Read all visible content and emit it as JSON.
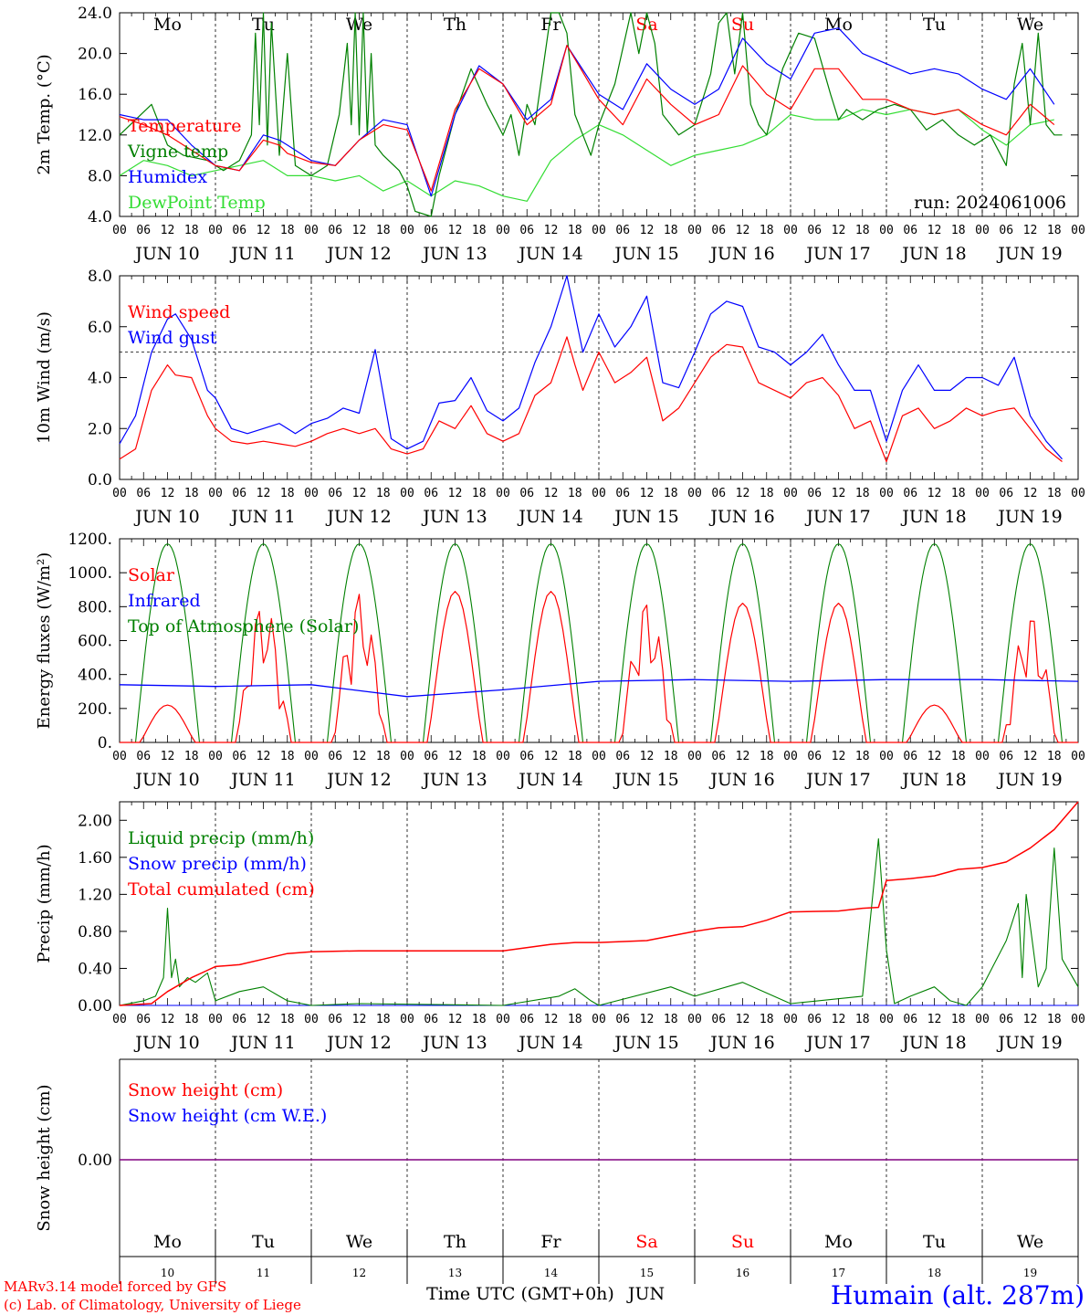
{
  "colors": {
    "red": "#ff0000",
    "green": "#008000",
    "blue": "#0000ff",
    "lime": "#33dd33",
    "black": "#000000",
    "purple": "#800080"
  },
  "hour_labels": [
    "00",
    "06",
    "12",
    "18"
  ],
  "final_hour_label": "00",
  "date_labels": [
    "JUN 10",
    "JUN 11",
    "JUN 12",
    "JUN 13",
    "JUN 14",
    "JUN 15",
    "JUN 16",
    "JUN 17",
    "JUN 18",
    "JUN 19"
  ],
  "weekdays": [
    {
      "label": "Mo",
      "color": "#000000"
    },
    {
      "label": "Tu",
      "color": "#000000"
    },
    {
      "label": "We",
      "color": "#000000"
    },
    {
      "label": "Th",
      "color": "#000000"
    },
    {
      "label": "Fr",
      "color": "#000000"
    },
    {
      "label": "Sa",
      "color": "#ff0000"
    },
    {
      "label": "Su",
      "color": "#ff0000"
    },
    {
      "label": "Mo",
      "color": "#000000"
    },
    {
      "label": "Tu",
      "color": "#000000"
    },
    {
      "label": "We",
      "color": "#000000"
    }
  ],
  "bottom_day_numbers": [
    "10",
    "11",
    "12",
    "13",
    "14",
    "15",
    "16",
    "17",
    "18",
    "19"
  ],
  "x_axis_title": "Time UTC (GMT+0h)",
  "x_axis_month": "JUN",
  "credits": [
    "MARv3.14 model forced by GFS",
    "(c) Lab. of Climatology, University of Liege"
  ],
  "station": "Humain (alt. 287m)",
  "chart_data": [
    {
      "type": "line",
      "id": "temperature",
      "ylabel": "2m Temp. (°C)",
      "ylim": [
        4,
        24
      ],
      "yticks": [
        "4.0",
        "8.0",
        "12.0",
        "16.0",
        "20.0",
        "24.0"
      ],
      "annotation": "run: 2024061006",
      "x_unit": "hours since JUN 10 00 UTC",
      "series": [
        {
          "name": "Temperature",
          "color": "#ff0000",
          "x": [
            0,
            6,
            12,
            18,
            24,
            30,
            36,
            40,
            42,
            48,
            54,
            60,
            66,
            72,
            78,
            84,
            90,
            96,
            102,
            108,
            112,
            120,
            126,
            132,
            138,
            144,
            150,
            156,
            162,
            168,
            174,
            180,
            186,
            192,
            198,
            204,
            210,
            216,
            222,
            228,
            234
          ],
          "y": [
            13.8,
            13.0,
            12.0,
            10.5,
            9.0,
            8.5,
            11.5,
            11.0,
            10.2,
            9.3,
            9.0,
            11.5,
            13.0,
            12.5,
            6.5,
            14.5,
            18.5,
            17.0,
            13.0,
            15.0,
            20.8,
            15.5,
            13.0,
            17.5,
            15.0,
            13.0,
            14.0,
            18.8,
            16.0,
            14.5,
            18.5,
            18.5,
            15.5,
            15.5,
            14.5,
            14.0,
            14.5,
            13.0,
            12.0,
            15.0,
            13.0
          ]
        },
        {
          "name": "Vigne temp",
          "color": "#008000",
          "x": [
            0,
            4,
            8,
            12,
            16,
            22,
            26,
            30,
            33,
            34,
            35,
            36,
            37,
            38,
            40,
            42,
            44,
            48,
            52,
            55,
            57,
            58,
            59,
            60,
            61,
            62,
            63,
            64,
            66,
            70,
            72,
            74,
            78,
            80,
            84,
            88,
            92,
            96,
            98,
            100,
            102,
            104,
            108,
            110,
            112,
            114,
            116,
            118,
            120,
            124,
            128,
            130,
            132,
            134,
            136,
            140,
            144,
            148,
            150,
            152,
            154,
            156,
            158,
            160,
            162,
            166,
            170,
            174,
            178,
            180,
            182,
            186,
            190,
            194,
            198,
            202,
            206,
            210,
            214,
            218,
            222,
            224,
            226,
            228,
            230,
            232,
            234,
            236
          ],
          "y": [
            12.0,
            13.5,
            15.0,
            11.0,
            10.0,
            9.5,
            8.5,
            9.5,
            12.0,
            22.0,
            13.0,
            25.0,
            11.0,
            23.0,
            10.0,
            20.0,
            9.0,
            8.0,
            9.0,
            14.0,
            21.0,
            13.0,
            24.0,
            12.0,
            25.0,
            12.0,
            20.0,
            11.0,
            10.0,
            8.5,
            7.0,
            4.5,
            3.0,
            8.0,
            14.0,
            18.5,
            15.0,
            12.0,
            14.0,
            10.0,
            15.0,
            13.0,
            24.0,
            26.0,
            22.0,
            14.0,
            12.0,
            10.0,
            13.0,
            17.0,
            24.0,
            20.0,
            24.0,
            21.0,
            14.0,
            12.0,
            13.0,
            18.0,
            23.0,
            26.0,
            18.0,
            24.0,
            15.0,
            13.0,
            12.0,
            18.5,
            22.0,
            21.5,
            16.0,
            13.5,
            14.5,
            13.5,
            14.5,
            15.0,
            14.5,
            12.5,
            13.5,
            12.0,
            11.0,
            12.0,
            9.0,
            17.0,
            21.0,
            13.0,
            22.0,
            13.0,
            12.0,
            12.0
          ]
        },
        {
          "name": "Humidex",
          "color": "#0000ff",
          "x": [
            0,
            6,
            12,
            18,
            24,
            30,
            36,
            40,
            42,
            48,
            54,
            60,
            66,
            72,
            78,
            84,
            90,
            96,
            102,
            108,
            112,
            120,
            126,
            132,
            138,
            144,
            150,
            156,
            162,
            168,
            174,
            180,
            186,
            192,
            198,
            204,
            210,
            216,
            222,
            228,
            234
          ],
          "y": [
            14.0,
            13.5,
            13.5,
            11.0,
            9.0,
            8.5,
            12.0,
            11.5,
            11.0,
            9.5,
            9.0,
            11.5,
            13.5,
            13.0,
            6.0,
            14.0,
            18.8,
            17.0,
            13.5,
            15.5,
            20.8,
            16.0,
            14.5,
            19.0,
            16.5,
            15.0,
            16.5,
            21.5,
            19.0,
            17.5,
            22.0,
            22.5,
            20.0,
            19.0,
            18.0,
            18.5,
            18.0,
            16.5,
            15.5,
            18.5,
            15.0
          ]
        },
        {
          "name": "DewPoint Temp",
          "color": "#33dd33",
          "x": [
            0,
            6,
            12,
            18,
            24,
            30,
            36,
            42,
            48,
            54,
            60,
            66,
            72,
            78,
            84,
            90,
            96,
            102,
            108,
            114,
            120,
            126,
            132,
            138,
            144,
            150,
            156,
            162,
            168,
            174,
            180,
            186,
            192,
            198,
            204,
            210,
            216,
            222,
            228,
            234
          ],
          "y": [
            8.0,
            9.5,
            9.0,
            8.0,
            8.5,
            9.0,
            9.5,
            8.0,
            8.0,
            7.5,
            8.0,
            6.5,
            7.5,
            6.0,
            7.5,
            7.0,
            6.0,
            5.5,
            9.5,
            11.5,
            13.0,
            12.0,
            10.5,
            9.0,
            10.0,
            10.5,
            11.0,
            12.0,
            14.0,
            13.5,
            13.5,
            14.5,
            14.0,
            14.5,
            14.0,
            14.5,
            12.5,
            11.0,
            13.0,
            13.5
          ]
        }
      ]
    },
    {
      "type": "line",
      "id": "wind",
      "ylabel": "10m Wind (m/s)",
      "ylim": [
        0,
        8
      ],
      "yticks": [
        "0.0",
        "2.0",
        "4.0",
        "6.0",
        "8.0"
      ],
      "reference_line": 5.0,
      "x_unit": "hours since JUN 10 00 UTC",
      "series": [
        {
          "name": "Wind speed",
          "color": "#ff0000",
          "x": [
            0,
            4,
            8,
            12,
            14,
            18,
            22,
            24,
            28,
            32,
            36,
            40,
            44,
            48,
            52,
            56,
            60,
            64,
            68,
            72,
            76,
            80,
            84,
            88,
            92,
            96,
            100,
            104,
            108,
            112,
            114,
            116,
            120,
            124,
            128,
            132,
            136,
            140,
            144,
            148,
            152,
            156,
            160,
            164,
            168,
            172,
            176,
            180,
            184,
            188,
            192,
            196,
            200,
            204,
            208,
            212,
            216,
            220,
            224,
            228,
            232,
            236
          ],
          "y": [
            0.8,
            1.2,
            3.5,
            4.5,
            4.1,
            4.0,
            2.5,
            2.0,
            1.5,
            1.4,
            1.5,
            1.4,
            1.3,
            1.5,
            1.8,
            2.0,
            1.8,
            2.0,
            1.2,
            1.0,
            1.2,
            2.3,
            2.0,
            2.9,
            1.8,
            1.5,
            1.8,
            3.3,
            3.8,
            5.6,
            4.5,
            3.5,
            5.0,
            3.8,
            4.2,
            4.8,
            2.3,
            2.8,
            3.8,
            4.8,
            5.3,
            5.2,
            3.8,
            3.5,
            3.2,
            3.8,
            4.0,
            3.3,
            2.0,
            2.3,
            0.7,
            2.5,
            2.8,
            2.0,
            2.3,
            2.8,
            2.5,
            2.7,
            2.8,
            2.0,
            1.2,
            0.7
          ]
        },
        {
          "name": "Wind gust",
          "color": "#0000ff",
          "x": [
            0,
            4,
            8,
            12,
            14,
            18,
            22,
            24,
            28,
            32,
            36,
            40,
            44,
            48,
            52,
            56,
            60,
            64,
            68,
            72,
            76,
            80,
            84,
            88,
            92,
            96,
            100,
            104,
            108,
            112,
            114,
            116,
            120,
            124,
            128,
            132,
            136,
            140,
            144,
            148,
            152,
            156,
            160,
            164,
            168,
            172,
            176,
            180,
            184,
            188,
            192,
            196,
            200,
            204,
            208,
            212,
            216,
            220,
            224,
            228,
            232,
            236
          ],
          "y": [
            1.4,
            2.5,
            5.0,
            6.3,
            6.5,
            5.5,
            3.5,
            3.2,
            2.0,
            1.8,
            2.0,
            2.2,
            1.8,
            2.2,
            2.4,
            2.8,
            2.6,
            5.1,
            1.6,
            1.2,
            1.5,
            3.0,
            3.1,
            4.0,
            2.7,
            2.3,
            2.8,
            4.6,
            6.0,
            8.0,
            6.5,
            5.0,
            6.5,
            5.2,
            6.0,
            7.2,
            3.8,
            3.6,
            5.0,
            6.5,
            7.0,
            6.8,
            5.2,
            5.0,
            4.5,
            5.0,
            5.7,
            4.5,
            3.5,
            3.5,
            1.5,
            3.5,
            4.5,
            3.5,
            3.5,
            4.0,
            4.0,
            3.7,
            4.8,
            2.5,
            1.5,
            0.8
          ]
        }
      ]
    },
    {
      "type": "line",
      "id": "energy",
      "ylabel": "Energy fluxes (W/m²)",
      "ylim": [
        0,
        1200
      ],
      "yticks": [
        "0.",
        "200.",
        "400.",
        "600.",
        "800.",
        "1000.",
        "1200."
      ],
      "x_unit": "hours since JUN 10 00 UTC",
      "series": [
        {
          "name": "Solar",
          "color": "#ff0000",
          "daily_peaks": [
            220,
            840,
            890,
            890,
            890,
            850,
            820,
            820,
            220,
            770
          ]
        },
        {
          "name": "Infrared",
          "color": "#0000ff",
          "x": [
            0,
            24,
            48,
            72,
            96,
            120,
            144,
            168,
            192,
            216,
            240
          ],
          "y": [
            340,
            330,
            340,
            270,
            310,
            360,
            370,
            360,
            370,
            370,
            360
          ]
        },
        {
          "name": "Top of Atmosphere (Solar)",
          "color": "#008000",
          "daily_peak": 1170
        }
      ]
    },
    {
      "type": "line",
      "id": "precip",
      "ylabel": "Precip (mm/h)",
      "ylim": [
        0,
        2.2
      ],
      "yticks": [
        "0.00",
        "0.40",
        "0.80",
        "1.20",
        "1.60",
        "2.00"
      ],
      "x_unit": "hours since JUN 10 00 UTC",
      "series": [
        {
          "name": "Liquid precip (mm/h)",
          "color": "#008000",
          "x": [
            0,
            6,
            9,
            11,
            12,
            13,
            14,
            15,
            17,
            19,
            22,
            24,
            30,
            36,
            40,
            42,
            48,
            60,
            96,
            110,
            114,
            118,
            120,
            138,
            144,
            156,
            168,
            186,
            190,
            192,
            194,
            198,
            204,
            208,
            212,
            216,
            222,
            225,
            226,
            227,
            230,
            232,
            234,
            236,
            240
          ],
          "y": [
            0.0,
            0.05,
            0.1,
            0.3,
            1.05,
            0.3,
            0.5,
            0.2,
            0.3,
            0.25,
            0.35,
            0.05,
            0.15,
            0.2,
            0.1,
            0.05,
            0.0,
            0.02,
            0.0,
            0.1,
            0.18,
            0.05,
            0.0,
            0.2,
            0.1,
            0.25,
            0.02,
            0.1,
            1.8,
            0.6,
            0.02,
            0.1,
            0.2,
            0.05,
            0.0,
            0.2,
            0.7,
            1.1,
            0.3,
            1.2,
            0.2,
            0.4,
            1.7,
            0.5,
            0.2
          ]
        },
        {
          "name": "Snow precip (mm/h)",
          "color": "#0000ff",
          "x": [
            0,
            240
          ],
          "y": [
            0,
            0
          ]
        },
        {
          "name": "Total cumulated (cm)",
          "color": "#ff0000",
          "x": [
            0,
            8,
            12,
            18,
            22,
            24,
            30,
            36,
            42,
            48,
            60,
            72,
            84,
            96,
            108,
            114,
            120,
            132,
            144,
            150,
            156,
            162,
            168,
            180,
            186,
            190,
            192,
            198,
            204,
            210,
            216,
            222,
            228,
            234,
            240
          ],
          "y": [
            0.0,
            0.02,
            0.15,
            0.3,
            0.38,
            0.42,
            0.44,
            0.5,
            0.56,
            0.58,
            0.59,
            0.59,
            0.59,
            0.59,
            0.66,
            0.68,
            0.68,
            0.7,
            0.8,
            0.84,
            0.85,
            0.92,
            1.01,
            1.02,
            1.05,
            1.06,
            1.35,
            1.37,
            1.4,
            1.47,
            1.49,
            1.55,
            1.7,
            1.9,
            2.2
          ]
        }
      ]
    },
    {
      "type": "line",
      "id": "snow",
      "ylabel": "Snow height (cm)",
      "yticks": [
        "0.00"
      ],
      "x_unit": "hours since JUN 10 00 UTC",
      "series": [
        {
          "name": "Snow height (cm)",
          "color": "#ff0000",
          "x": [
            0,
            240
          ],
          "y": [
            0,
            0
          ]
        },
        {
          "name": "Snow height (cm W.E.)",
          "color": "#0000ff",
          "x": [
            0,
            240
          ],
          "y": [
            0,
            0
          ]
        }
      ]
    }
  ]
}
